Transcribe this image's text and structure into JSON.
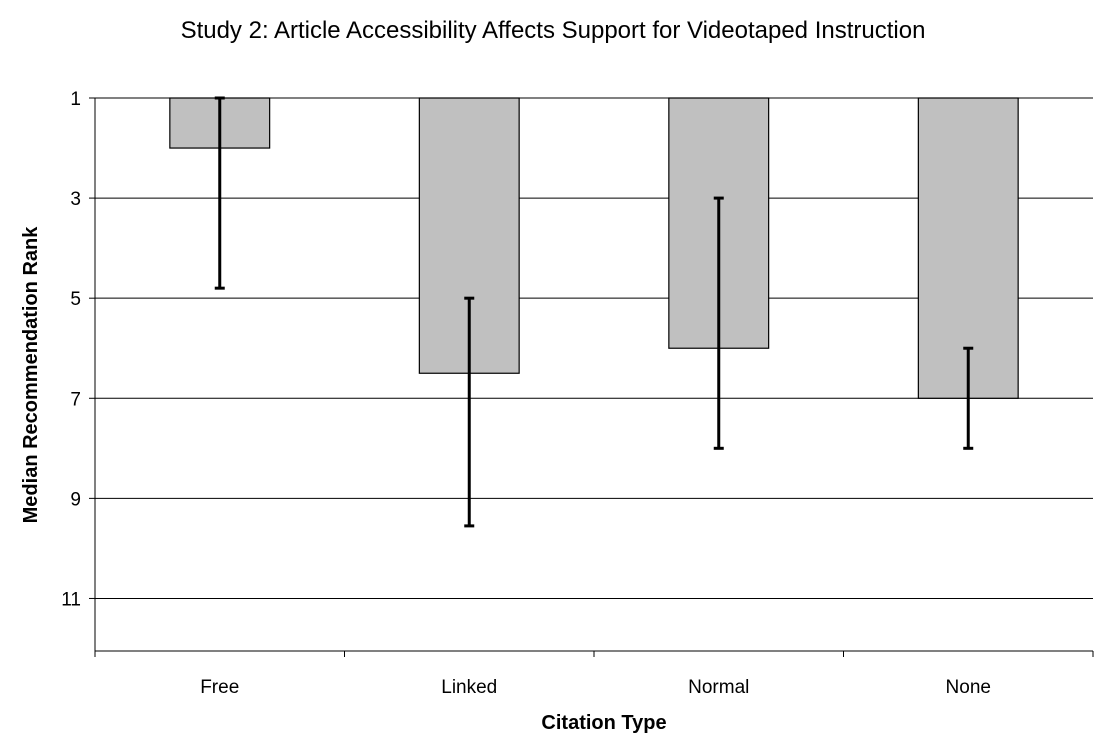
{
  "chart_data": {
    "type": "bar",
    "title": "Study 2: Article Accessibility Affects Support for Videotaped Instruction",
    "xlabel": "Citation Type",
    "ylabel": "Median Recommendation Rank",
    "categories": [
      "Free",
      "Linked",
      "Normal",
      "None"
    ],
    "values": [
      2,
      6.5,
      6,
      7
    ],
    "error_bars": [
      {
        "low": 1,
        "high": 4.8
      },
      {
        "low": 5,
        "high": 9.55
      },
      {
        "low": 3,
        "high": 8
      },
      {
        "low": 6,
        "high": 8
      }
    ],
    "ylim": [
      1,
      12.05
    ],
    "y_inverted": true,
    "y_ticks": [
      1,
      3,
      5,
      7,
      9,
      11
    ],
    "grid": true,
    "legend": "none",
    "colors": {
      "bar_fill": "#c0c0c0",
      "bar_stroke": "#000000",
      "grid": "#000000",
      "error_bar": "#000000"
    }
  }
}
